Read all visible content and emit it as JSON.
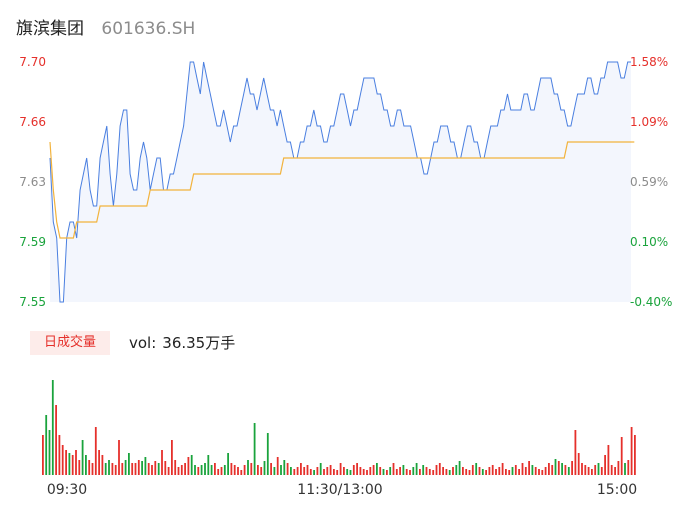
{
  "header": {
    "name": "旗滨集团",
    "code": "601636.SH"
  },
  "volume": {
    "tag": "日成交量",
    "label": "vol:",
    "value": "36.35万手"
  },
  "colors": {
    "price_line": "#4a7fe0",
    "avg_line": "#f2b33d",
    "area_fill": "#f3f6fd",
    "up": "#e5302b",
    "down": "#1aa33c",
    "neutral": "#8c8c8c"
  },
  "chart_data": {
    "type": "line",
    "x_ticks": [
      "09:30",
      "11:30/13:00",
      "15:00"
    ],
    "y_ticks_left": [
      "7.70",
      "7.66",
      "7.63",
      "7.59",
      "7.55"
    ],
    "y_ticks_right": [
      "1.58%",
      "1.09%",
      "0.59%",
      "0.10%",
      "-0.40%"
    ],
    "ylim": [
      7.55,
      7.7
    ],
    "prev_close": 7.58,
    "price": [
      7.64,
      7.6,
      7.59,
      7.55,
      7.55,
      7.59,
      7.6,
      7.6,
      7.59,
      7.62,
      7.63,
      7.64,
      7.62,
      7.61,
      7.61,
      7.64,
      7.65,
      7.66,
      7.63,
      7.61,
      7.63,
      7.66,
      7.67,
      7.67,
      7.63,
      7.62,
      7.62,
      7.64,
      7.65,
      7.64,
      7.62,
      7.63,
      7.64,
      7.64,
      7.62,
      7.62,
      7.63,
      7.63,
      7.64,
      7.65,
      7.66,
      7.68,
      7.7,
      7.7,
      7.69,
      7.68,
      7.7,
      7.69,
      7.68,
      7.67,
      7.66,
      7.66,
      7.67,
      7.66,
      7.65,
      7.66,
      7.66,
      7.67,
      7.68,
      7.69,
      7.68,
      7.68,
      7.67,
      7.68,
      7.69,
      7.68,
      7.67,
      7.67,
      7.66,
      7.67,
      7.66,
      7.65,
      7.65,
      7.64,
      7.64,
      7.65,
      7.65,
      7.66,
      7.66,
      7.67,
      7.66,
      7.66,
      7.65,
      7.65,
      7.66,
      7.66,
      7.67,
      7.68,
      7.68,
      7.67,
      7.66,
      7.67,
      7.67,
      7.68,
      7.69,
      7.69,
      7.69,
      7.69,
      7.68,
      7.68,
      7.67,
      7.67,
      7.66,
      7.66,
      7.67,
      7.67,
      7.66,
      7.66,
      7.66,
      7.65,
      7.64,
      7.64,
      7.63,
      7.63,
      7.64,
      7.65,
      7.65,
      7.66,
      7.66,
      7.66,
      7.65,
      7.65,
      7.64,
      7.64,
      7.65,
      7.66,
      7.66,
      7.65,
      7.65,
      7.64,
      7.64,
      7.65,
      7.66,
      7.66,
      7.66,
      7.67,
      7.67,
      7.68,
      7.67,
      7.67,
      7.67,
      7.67,
      7.68,
      7.68,
      7.67,
      7.67,
      7.68,
      7.69,
      7.69,
      7.69,
      7.69,
      7.68,
      7.68,
      7.67,
      7.67,
      7.66,
      7.66,
      7.67,
      7.68,
      7.68,
      7.68,
      7.69,
      7.69,
      7.68,
      7.68,
      7.69,
      7.69,
      7.7,
      7.7,
      7.7,
      7.7,
      7.69,
      7.69,
      7.7,
      7.7
    ],
    "avg": [
      7.65,
      7.62,
      7.6,
      7.59,
      7.59,
      7.59,
      7.59,
      7.59,
      7.6,
      7.6,
      7.6,
      7.6,
      7.6,
      7.6,
      7.6,
      7.61,
      7.61,
      7.61,
      7.61,
      7.61,
      7.61,
      7.61,
      7.61,
      7.61,
      7.61,
      7.61,
      7.61,
      7.61,
      7.61,
      7.61,
      7.62,
      7.62,
      7.62,
      7.62,
      7.62,
      7.62,
      7.62,
      7.62,
      7.62,
      7.62,
      7.62,
      7.62,
      7.62,
      7.63,
      7.63,
      7.63,
      7.63,
      7.63,
      7.63,
      7.63,
      7.63,
      7.63,
      7.63,
      7.63,
      7.63,
      7.63,
      7.63,
      7.63,
      7.63,
      7.63,
      7.63,
      7.63,
      7.63,
      7.63,
      7.63,
      7.63,
      7.63,
      7.63,
      7.63,
      7.63,
      7.64,
      7.64,
      7.64,
      7.64,
      7.64,
      7.64,
      7.64,
      7.64,
      7.64,
      7.64,
      7.64,
      7.64,
      7.64,
      7.64,
      7.64,
      7.64,
      7.64,
      7.64,
      7.64,
      7.64,
      7.64,
      7.64,
      7.64,
      7.64,
      7.64,
      7.64,
      7.64,
      7.64,
      7.64,
      7.64,
      7.64,
      7.64,
      7.64,
      7.64,
      7.64,
      7.64,
      7.64,
      7.64,
      7.64,
      7.64,
      7.64,
      7.64,
      7.64,
      7.64,
      7.64,
      7.64,
      7.64,
      7.64,
      7.64,
      7.64,
      7.64,
      7.64,
      7.64,
      7.64,
      7.64,
      7.64,
      7.64,
      7.64,
      7.64,
      7.64,
      7.64,
      7.64,
      7.64,
      7.64,
      7.64,
      7.64,
      7.64,
      7.64,
      7.64,
      7.64,
      7.64,
      7.64,
      7.64,
      7.64,
      7.64,
      7.64,
      7.64,
      7.64,
      7.64,
      7.64,
      7.64,
      7.64,
      7.64,
      7.64,
      7.64,
      7.65,
      7.65,
      7.65,
      7.65,
      7.65,
      7.65,
      7.65,
      7.65,
      7.65,
      7.65,
      7.65,
      7.65,
      7.65,
      7.65,
      7.65,
      7.65,
      7.65,
      7.65,
      7.65,
      7.65,
      7.65
    ],
    "volume": [
      40,
      60,
      45,
      95,
      70,
      40,
      30,
      25,
      22,
      20,
      25,
      15,
      35,
      20,
      15,
      12,
      48,
      25,
      20,
      12,
      15,
      12,
      10,
      35,
      12,
      15,
      22,
      12,
      12,
      15,
      14,
      18,
      12,
      10,
      14,
      12,
      25,
      14,
      8,
      35,
      15,
      8,
      10,
      12,
      18,
      20,
      10,
      8,
      10,
      12,
      20,
      10,
      12,
      6,
      8,
      10,
      22,
      12,
      10,
      8,
      5,
      10,
      15,
      12,
      52,
      10,
      8,
      14,
      42,
      12,
      8,
      18,
      10,
      15,
      12,
      8,
      6,
      8,
      12,
      8,
      10,
      6,
      5,
      8,
      12,
      6,
      8,
      10,
      6,
      5,
      12,
      8,
      6,
      5,
      10,
      12,
      8,
      6,
      5,
      8,
      10,
      12,
      8,
      6,
      5,
      8,
      12,
      6,
      8,
      10,
      6,
      5,
      8,
      12,
      6,
      10,
      8,
      6,
      5,
      10,
      12,
      8,
      6,
      5,
      8,
      10,
      14,
      8,
      6,
      5,
      10,
      12,
      8,
      6,
      5,
      8,
      10,
      6,
      8,
      12,
      6,
      5,
      8,
      10,
      6,
      12,
      8,
      14,
      10,
      8,
      6,
      5,
      8,
      12,
      10,
      16,
      14,
      12,
      10,
      8,
      14,
      45,
      22,
      12,
      10,
      8,
      6,
      10,
      12,
      8,
      20,
      30,
      10,
      8,
      14,
      38,
      12,
      15,
      48,
      40
    ]
  }
}
